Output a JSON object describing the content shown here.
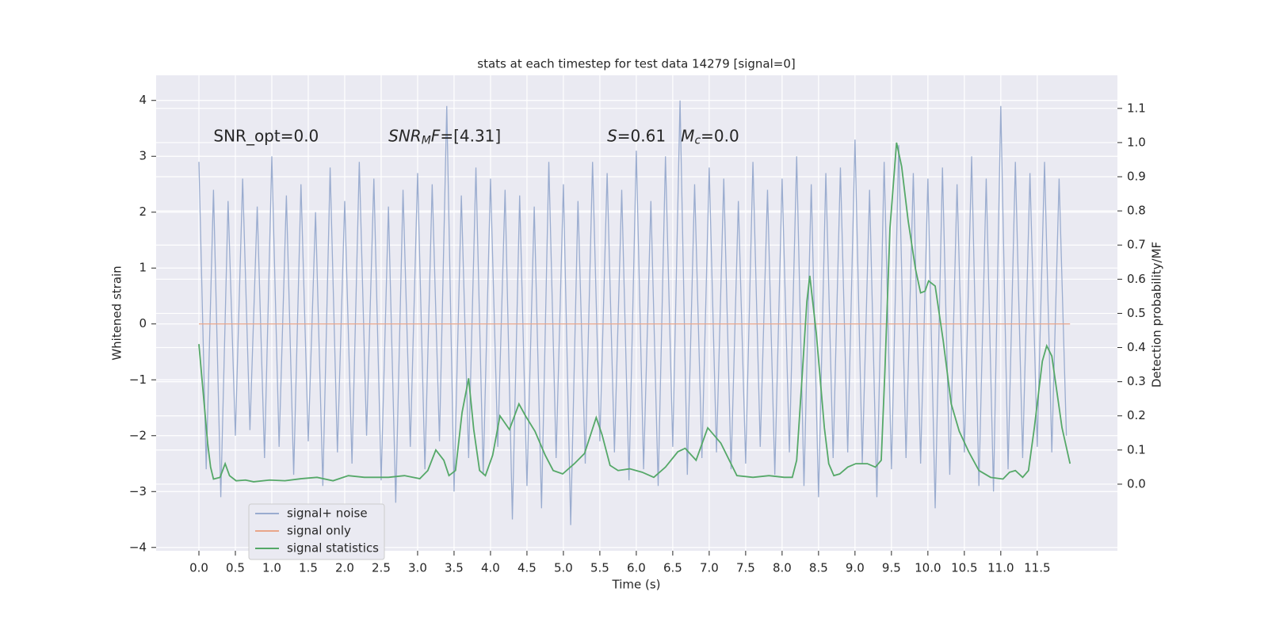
{
  "chart_data": {
    "type": "line",
    "title": "stats at each timestep for test data 14279 [signal=0]",
    "xlabel": "Time (s)",
    "ylabel": "Whitened strain",
    "y2label": "Detection probability/MF",
    "annotations": [
      {
        "x": 0.2,
        "y": 3.35,
        "parts": [
          {
            "text": "SNR_opt=0.0"
          }
        ]
      },
      {
        "x": 2.6,
        "y": 3.35,
        "parts": [
          {
            "text": "SNR",
            "italic": true
          },
          {
            "text": "M",
            "italic": true,
            "sub": true
          },
          {
            "text": "F",
            "italic": true
          },
          {
            "text": "=[4.31]"
          }
        ]
      },
      {
        "x": 5.6,
        "y": 3.35,
        "parts": [
          {
            "text": "S",
            "italic": true
          },
          {
            "text": "=0.61   "
          },
          {
            "text": "M",
            "italic": true
          },
          {
            "text": "c",
            "italic": true,
            "sub": true
          },
          {
            "text": "=0.0"
          }
        ]
      }
    ],
    "xlim": [
      -0.587,
      12.6
    ],
    "xticks": [
      {
        "value": 0,
        "label": "0.0"
      },
      0.5,
      {
        "value": 1,
        "label": "1.0"
      },
      1.5,
      {
        "value": 2,
        "label": "2.0"
      },
      2.5,
      {
        "value": 3,
        "label": "3.0"
      },
      3.5,
      {
        "value": 4,
        "label": "4.0"
      },
      4.5,
      {
        "value": 5,
        "label": "5.0"
      },
      5.5,
      {
        "value": 6,
        "label": "6.0"
      },
      6.5,
      {
        "value": 7,
        "label": "7.0"
      },
      7.5,
      {
        "value": 8,
        "label": "8.0"
      },
      8.5,
      {
        "value": 9,
        "label": "9.0"
      },
      9.5,
      {
        "value": 10,
        "label": "10.0"
      },
      10.5,
      {
        "value": 11,
        "label": "11.0"
      },
      11.5
    ],
    "ylim": [
      -4.06,
      4.45
    ],
    "yticks": [
      {
        "value": -4,
        "label": "−4"
      },
      {
        "value": -3,
        "label": "−3"
      },
      {
        "value": -2,
        "label": "−2"
      },
      {
        "value": -1,
        "label": "−1"
      },
      0,
      1,
      2,
      3,
      4
    ],
    "y2lim": [
      -0.195,
      1.197
    ],
    "y2ticks": [
      {
        "value": 0,
        "label": "0.0"
      },
      0.1,
      0.2,
      0.3,
      0.4,
      0.5,
      0.6,
      0.7,
      0.8,
      0.9,
      {
        "value": 1,
        "label": "1.0"
      },
      1.1
    ],
    "grid": true,
    "legend": "lower left",
    "series": [
      {
        "name": "signal+ noise",
        "color": "#9aaccf",
        "x": [
          0.0,
          0.1,
          0.2,
          0.3,
          0.4,
          0.5,
          0.6,
          0.7,
          0.8,
          0.9,
          1.0,
          1.1,
          1.2,
          1.3,
          1.4,
          1.5,
          1.6,
          1.7,
          1.8,
          1.9,
          2.0,
          2.1,
          2.2,
          2.3,
          2.4,
          2.5,
          2.6,
          2.7,
          2.8,
          2.9,
          3.0,
          3.1,
          3.2,
          3.3,
          3.4,
          3.5,
          3.6,
          3.7,
          3.8,
          3.9,
          4.0,
          4.1,
          4.2,
          4.3,
          4.4,
          4.5,
          4.6,
          4.7,
          4.8,
          4.9,
          5.0,
          5.1,
          5.2,
          5.3,
          5.4,
          5.5,
          5.6,
          5.7,
          5.8,
          5.9,
          6.0,
          6.1,
          6.2,
          6.3,
          6.4,
          6.5,
          6.6,
          6.7,
          6.8,
          6.9,
          7.0,
          7.1,
          7.2,
          7.3,
          7.4,
          7.5,
          7.6,
          7.7,
          7.8,
          7.9,
          8.0,
          8.1,
          8.2,
          8.3,
          8.4,
          8.5,
          8.6,
          8.7,
          8.8,
          8.9,
          9.0,
          9.1,
          9.2,
          9.3,
          9.4,
          9.5,
          9.6,
          9.7,
          9.8,
          9.9,
          10.0,
          10.1,
          10.2,
          10.3,
          10.4,
          10.5,
          10.6,
          10.7,
          10.8,
          10.9,
          11.0,
          11.1,
          11.2,
          11.3,
          11.4,
          11.5,
          11.6,
          11.7,
          11.8,
          11.9
        ],
        "values": [
          2.9,
          -2.6,
          2.4,
          -3.1,
          2.2,
          -2.0,
          2.6,
          -1.9,
          2.1,
          -2.4,
          3.0,
          -2.2,
          2.3,
          -2.7,
          2.5,
          -2.1,
          2.0,
          -2.9,
          2.8,
          -2.3,
          2.2,
          -2.5,
          2.9,
          -2.0,
          2.6,
          -2.8,
          2.1,
          -3.2,
          2.4,
          -2.2,
          2.7,
          -2.6,
          2.5,
          -2.1,
          3.9,
          -3.0,
          2.3,
          -2.4,
          2.8,
          -2.7,
          2.6,
          -2.2,
          2.4,
          -3.5,
          2.3,
          -2.9,
          2.1,
          -3.3,
          2.9,
          -2.4,
          2.5,
          -3.6,
          2.2,
          -2.5,
          2.9,
          -2.1,
          2.7,
          -2.3,
          2.4,
          -2.8,
          3.1,
          -2.6,
          2.2,
          -2.9,
          3.0,
          -2.2,
          4.0,
          -2.7,
          2.5,
          -2.4,
          2.8,
          -2.3,
          2.6,
          -2.6,
          2.2,
          -2.5,
          2.9,
          -2.2,
          2.4,
          -2.7,
          2.6,
          -2.3,
          3.0,
          -2.9,
          2.5,
          -3.1,
          2.7,
          -2.4,
          2.8,
          -2.3,
          3.3,
          -2.5,
          2.4,
          -3.1,
          2.9,
          -2.6,
          3.2,
          -2.4,
          2.7,
          -2.5,
          2.6,
          -3.3,
          2.8,
          -2.7,
          2.5,
          -2.3,
          3.0,
          -2.9,
          2.6,
          -3.0,
          3.9,
          -2.6,
          2.9,
          -2.4,
          2.7,
          -2.2,
          2.9,
          -2.3,
          2.6,
          -2.0
        ]
      },
      {
        "name": "signal only",
        "color": "#e9a68a",
        "x": [
          0.0,
          11.95
        ],
        "values": [
          0,
          0
        ]
      },
      {
        "name": "signal statistics",
        "color": "#55a868",
        "axis": "y2",
        "x": [
          0.0,
          0.12,
          0.16,
          0.2,
          0.29,
          0.36,
          0.42,
          0.51,
          0.64,
          0.75,
          0.97,
          1.18,
          1.4,
          1.62,
          1.84,
          2.05,
          2.27,
          2.6,
          2.82,
          3.03,
          3.14,
          3.25,
          3.36,
          3.43,
          3.52,
          3.61,
          3.7,
          3.77,
          3.85,
          3.93,
          4.03,
          4.13,
          4.26,
          4.39,
          4.48,
          4.61,
          4.75,
          4.86,
          4.99,
          5.15,
          5.29,
          5.45,
          5.53,
          5.64,
          5.75,
          5.91,
          6.08,
          6.24,
          6.4,
          6.57,
          6.67,
          6.82,
          6.98,
          7.16,
          7.38,
          7.6,
          7.82,
          8.03,
          8.14,
          8.2,
          8.27,
          8.34,
          8.38,
          8.47,
          8.58,
          8.64,
          8.71,
          8.79,
          8.9,
          9.01,
          9.17,
          9.28,
          9.36,
          9.41,
          9.48,
          9.57,
          9.64,
          9.73,
          9.83,
          9.9,
          9.96,
          10.01,
          10.1,
          10.21,
          10.32,
          10.43,
          10.56,
          10.7,
          10.86,
          11.03,
          11.12,
          11.2,
          11.3,
          11.38,
          11.46,
          11.57,
          11.63,
          11.7,
          11.84,
          11.95
        ],
        "values": [
          0.41,
          0.12,
          0.05,
          0.015,
          0.02,
          0.06,
          0.025,
          0.01,
          0.012,
          0.007,
          0.012,
          0.01,
          0.016,
          0.02,
          0.01,
          0.025,
          0.02,
          0.02,
          0.025,
          0.016,
          0.04,
          0.1,
          0.07,
          0.025,
          0.04,
          0.21,
          0.31,
          0.16,
          0.04,
          0.025,
          0.085,
          0.2,
          0.16,
          0.235,
          0.2,
          0.155,
          0.085,
          0.04,
          0.03,
          0.06,
          0.09,
          0.195,
          0.145,
          0.055,
          0.04,
          0.045,
          0.035,
          0.02,
          0.05,
          0.095,
          0.105,
          0.07,
          0.165,
          0.12,
          0.025,
          0.02,
          0.025,
          0.02,
          0.02,
          0.07,
          0.3,
          0.535,
          0.61,
          0.44,
          0.165,
          0.06,
          0.025,
          0.03,
          0.05,
          0.06,
          0.06,
          0.05,
          0.07,
          0.33,
          0.75,
          1.0,
          0.93,
          0.77,
          0.63,
          0.56,
          0.565,
          0.595,
          0.58,
          0.42,
          0.235,
          0.155,
          0.095,
          0.04,
          0.02,
          0.015,
          0.035,
          0.04,
          0.02,
          0.04,
          0.165,
          0.36,
          0.405,
          0.375,
          0.165,
          0.06
        ]
      }
    ]
  }
}
